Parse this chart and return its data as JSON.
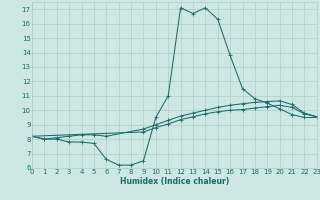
{
  "xlabel": "Humidex (Indice chaleur)",
  "bg_color": "#cde8e4",
  "grid_color": "#b0ccca",
  "line_color": "#1a6b6b",
  "line1": {
    "x": [
      0,
      1,
      2,
      3,
      4,
      5,
      6,
      7,
      8,
      9,
      10,
      11,
      12,
      13,
      14,
      15,
      16,
      17,
      18,
      19,
      20,
      21,
      22,
      23
    ],
    "y": [
      8.2,
      8.0,
      8.0,
      7.8,
      7.8,
      7.7,
      6.6,
      6.2,
      6.2,
      6.5,
      9.5,
      11.0,
      17.1,
      16.7,
      17.1,
      16.3,
      13.8,
      11.5,
      10.8,
      10.5,
      10.1,
      9.7,
      9.5,
      9.5
    ]
  },
  "line2": {
    "x": [
      0,
      1,
      2,
      3,
      4,
      5,
      6,
      9,
      10,
      11,
      12,
      13,
      14,
      15,
      16,
      17,
      18,
      19,
      20,
      21,
      22,
      23
    ],
    "y": [
      8.2,
      8.0,
      8.1,
      8.2,
      8.3,
      8.3,
      8.2,
      8.7,
      9.0,
      9.3,
      9.6,
      9.8,
      10.0,
      10.2,
      10.35,
      10.45,
      10.55,
      10.6,
      10.65,
      10.4,
      9.8,
      9.55
    ]
  },
  "line3": {
    "x": [
      0,
      9,
      10,
      11,
      12,
      13,
      14,
      15,
      16,
      17,
      18,
      19,
      20,
      21,
      22,
      23
    ],
    "y": [
      8.2,
      8.5,
      8.8,
      9.05,
      9.35,
      9.55,
      9.75,
      9.9,
      10.0,
      10.05,
      10.15,
      10.25,
      10.35,
      10.2,
      9.75,
      9.55
    ]
  },
  "xlim": [
    0,
    23
  ],
  "ylim": [
    6,
    17.5
  ],
  "yticks": [
    6,
    7,
    8,
    9,
    10,
    11,
    12,
    13,
    14,
    15,
    16,
    17
  ],
  "xticks": [
    0,
    1,
    2,
    3,
    4,
    5,
    6,
    7,
    8,
    9,
    10,
    11,
    12,
    13,
    14,
    15,
    16,
    17,
    18,
    19,
    20,
    21,
    22,
    23
  ],
  "tick_fontsize": 5.0,
  "xlabel_fontsize": 5.5
}
